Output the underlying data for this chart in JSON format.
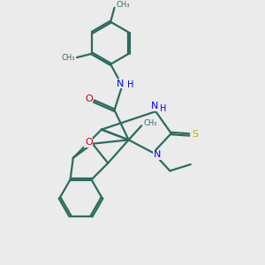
{
  "bg_color": "#ebebeb",
  "bond_color": "#2d6b5e",
  "N_color": "#0000ff",
  "O_color": "#cc0000",
  "S_color": "#ccaa00",
  "line_width": 1.6,
  "figsize": [
    3.0,
    3.0
  ],
  "dpi": 100,
  "xlim": [
    0,
    10
  ],
  "ylim": [
    0,
    10
  ]
}
